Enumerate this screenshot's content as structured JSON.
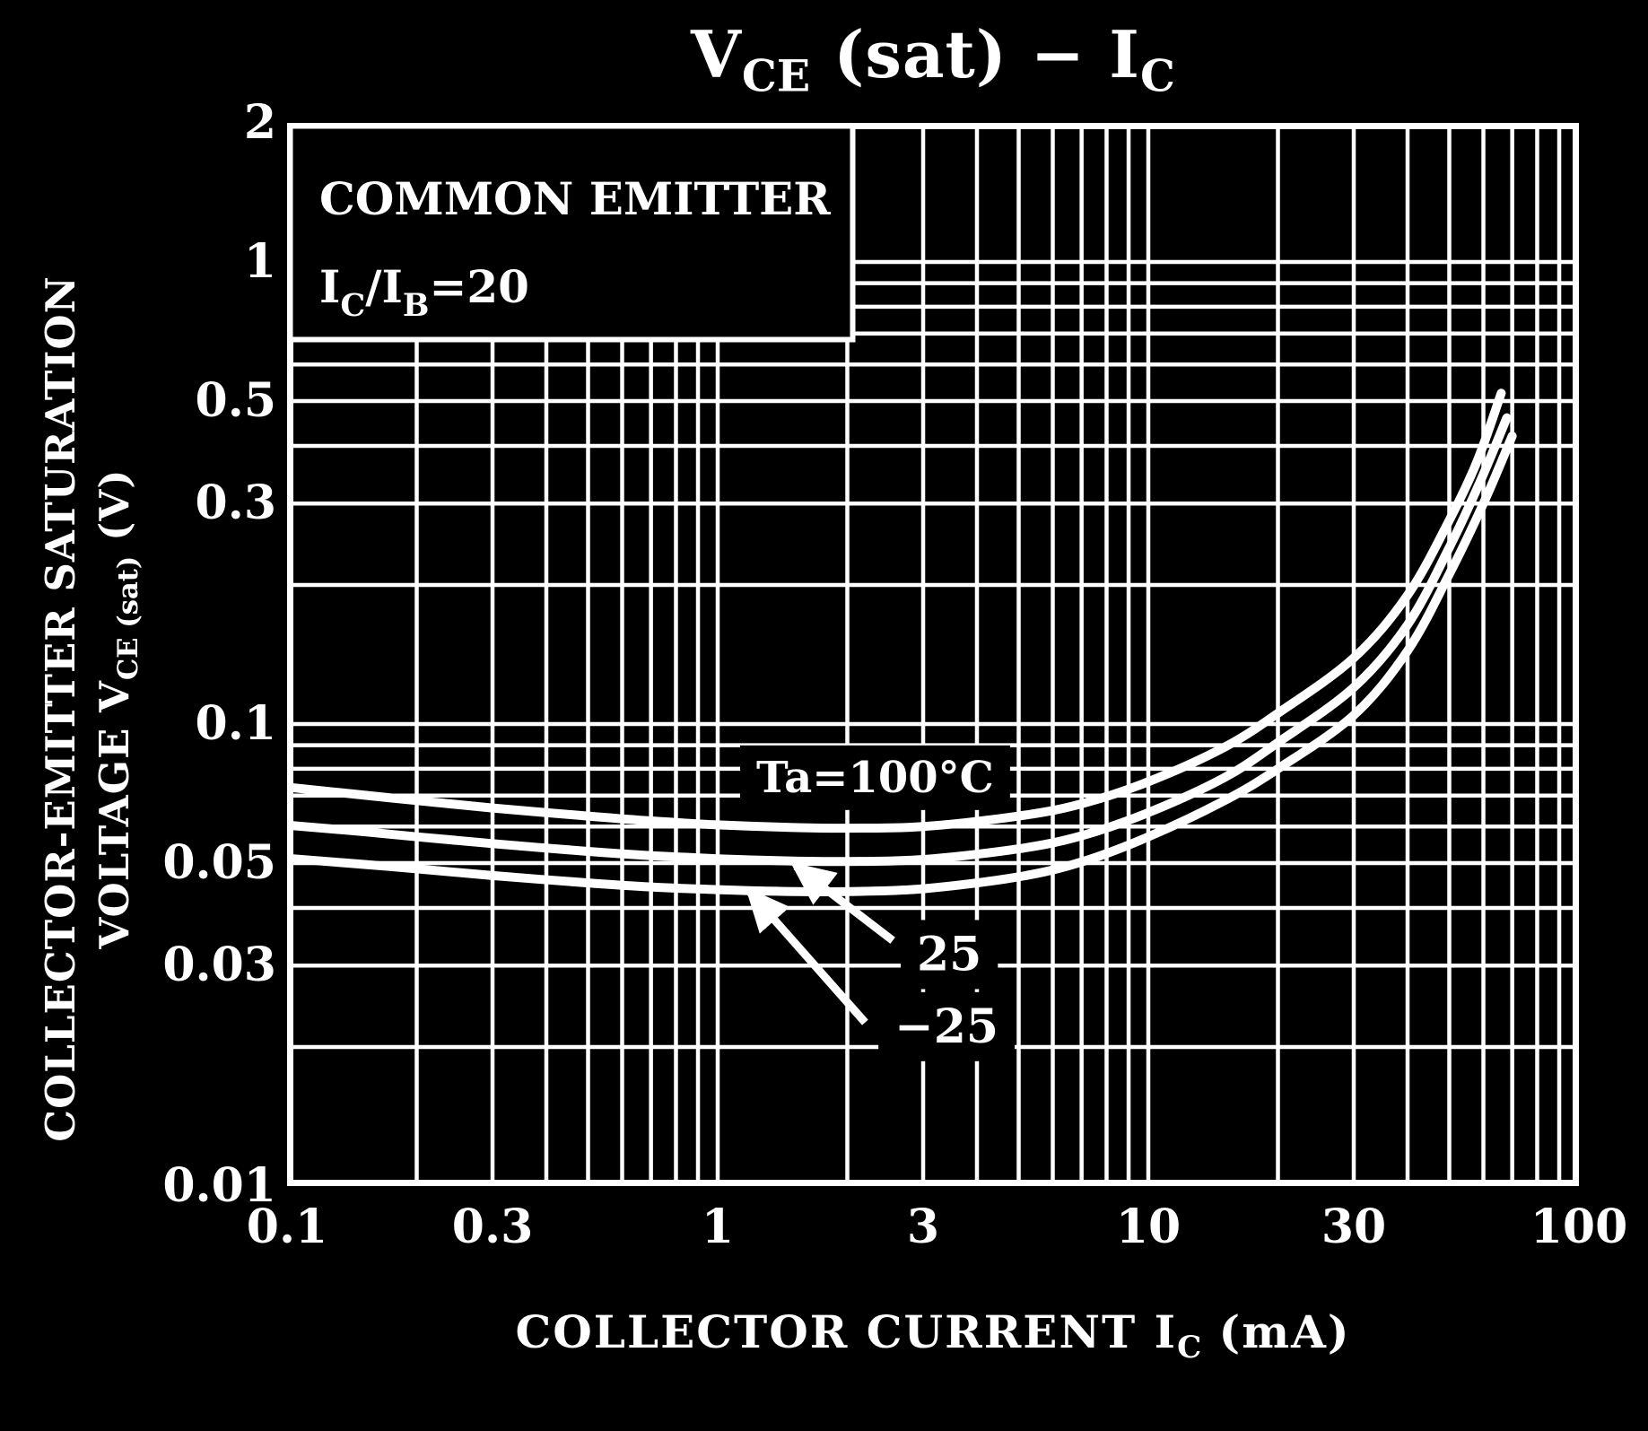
{
  "colors": {
    "background": "#000000",
    "foreground": "#ffffff"
  },
  "title": {
    "tokens": [
      {
        "t": "V"
      },
      {
        "t": "CE",
        "sub": true
      },
      {
        "t": " (sat)  −  I"
      },
      {
        "t": "C",
        "sub": true
      }
    ]
  },
  "legend_box": {
    "line1": "COMMON EMITTER",
    "line2_tokens": [
      {
        "t": "I"
      },
      {
        "t": "C",
        "sub": true
      },
      {
        "t": "/I"
      },
      {
        "t": "B",
        "sub": true
      },
      {
        "t": "=20"
      }
    ]
  },
  "x_axis": {
    "title_tokens": [
      {
        "t": "COLLECTOR CURRENT   I"
      },
      {
        "t": "C",
        "sub": true
      },
      {
        "t": "   (mA)"
      }
    ],
    "ticks": [
      {
        "v": 0.1,
        "label": "0.1"
      },
      {
        "v": 0.3,
        "label": "0.3"
      },
      {
        "v": 1,
        "label": "1"
      },
      {
        "v": 3,
        "label": "3"
      },
      {
        "v": 10,
        "label": "10"
      },
      {
        "v": 30,
        "label": "30"
      },
      {
        "v": 100,
        "label": "100"
      }
    ]
  },
  "y_axis": {
    "title_line1": "COLLECTOR-EMITTER SATURATION",
    "title_line2_tokens": [
      {
        "t": "VOLTAGE   V"
      },
      {
        "t": "CE (sat)",
        "sub": true
      },
      {
        "t": "   (V)"
      }
    ],
    "ticks": [
      {
        "v": 2,
        "label": "2"
      },
      {
        "v": 1,
        "label": "1"
      },
      {
        "v": 0.5,
        "label": "0.5"
      },
      {
        "v": 0.3,
        "label": "0.3"
      },
      {
        "v": 0.1,
        "label": "0.1"
      },
      {
        "v": 0.05,
        "label": "0.05"
      },
      {
        "v": 0.03,
        "label": "0.03"
      },
      {
        "v": 0.01,
        "label": "0.01"
      }
    ]
  },
  "chart_data": {
    "type": "line",
    "title": "VCE (sat) − IC",
    "xlabel": "COLLECTOR CURRENT IC (mA)",
    "ylabel": "COLLECTOR-EMITTER SATURATION VOLTAGE VCE (sat) (V)",
    "x_scale": "log",
    "y_scale": "log",
    "x_range": [
      0.1,
      100
    ],
    "y_range": [
      0.01,
      2
    ],
    "condition": "COMMON EMITTER, IC/IB=20",
    "grid": {
      "x_lines": [
        0.2,
        0.3,
        0.4,
        0.5,
        0.6,
        0.7,
        0.8,
        0.9,
        1,
        2,
        3,
        4,
        5,
        6,
        7,
        8,
        9,
        10,
        20,
        30,
        40,
        50,
        60,
        70,
        80,
        90
      ],
      "y_lines": [
        0.02,
        0.03,
        0.04,
        0.05,
        0.06,
        0.07,
        0.08,
        0.09,
        0.1,
        0.2,
        0.3,
        0.4,
        0.5,
        0.6,
        0.7,
        0.8,
        0.9,
        1
      ]
    },
    "series": [
      {
        "name": "ta-100c",
        "label": "Ta=100°C",
        "points": [
          [
            0.1,
            0.073
          ],
          [
            0.15,
            0.0702
          ],
          [
            0.2,
            0.0683
          ],
          [
            0.3,
            0.0658
          ],
          [
            0.5,
            0.0632
          ],
          [
            0.7,
            0.0617
          ],
          [
            1,
            0.0605
          ],
          [
            1.5,
            0.0597
          ],
          [
            2,
            0.0595
          ],
          [
            3,
            0.06
          ],
          [
            5,
            0.0632
          ],
          [
            7,
            0.0672
          ],
          [
            10,
            0.075
          ],
          [
            15,
            0.089
          ],
          [
            20,
            0.1055
          ],
          [
            30,
            0.139
          ],
          [
            40,
            0.19
          ],
          [
            50,
            0.276
          ],
          [
            58,
            0.37
          ],
          [
            66,
            0.52
          ]
        ]
      },
      {
        "name": "ta-25c",
        "label": "25",
        "points": [
          [
            0.1,
            0.0604
          ],
          [
            0.15,
            0.0585
          ],
          [
            0.2,
            0.057
          ],
          [
            0.3,
            0.0551
          ],
          [
            0.5,
            0.053
          ],
          [
            0.7,
            0.0519
          ],
          [
            1,
            0.0511
          ],
          [
            1.5,
            0.0505
          ],
          [
            2,
            0.0504
          ],
          [
            3,
            0.0509
          ],
          [
            5,
            0.0537
          ],
          [
            7,
            0.0573
          ],
          [
            10,
            0.0643
          ],
          [
            15,
            0.0765
          ],
          [
            20,
            0.0912
          ],
          [
            30,
            0.12
          ],
          [
            40,
            0.164
          ],
          [
            50,
            0.241
          ],
          [
            59,
            0.335
          ],
          [
            68,
            0.46
          ]
        ]
      },
      {
        "name": "ta-minus-25c",
        "label": "−25",
        "points": [
          [
            0.1,
            0.0512
          ],
          [
            0.15,
            0.0497
          ],
          [
            0.2,
            0.0486
          ],
          [
            0.3,
            0.047
          ],
          [
            0.5,
            0.0453
          ],
          [
            0.7,
            0.0444
          ],
          [
            1,
            0.0438
          ],
          [
            1.5,
            0.0434
          ],
          [
            2,
            0.0434
          ],
          [
            3,
            0.044
          ],
          [
            5,
            0.0467
          ],
          [
            7,
            0.0503
          ],
          [
            10,
            0.057
          ],
          [
            15,
            0.0682
          ],
          [
            20,
            0.08
          ],
          [
            30,
            0.1045
          ],
          [
            40,
            0.144
          ],
          [
            50,
            0.211
          ],
          [
            60,
            0.3
          ],
          [
            70,
            0.42
          ]
        ]
      }
    ],
    "annotations": [
      {
        "id": "label-ta-100c",
        "text": "Ta=100°C",
        "at": [
          2.32,
          0.0768
        ],
        "font": 48
      },
      {
        "id": "label-25",
        "text": "25",
        "at": [
          3.45,
          0.0318
        ],
        "font": 52,
        "arrow": {
          "from": [
            2.55,
            0.034
          ],
          "to": [
            1.52,
            0.0492
          ]
        }
      },
      {
        "id": "label-minus-25",
        "text": "−25",
        "at": [
          3.4,
          0.0222
        ],
        "font": 52,
        "arrow": {
          "from": [
            2.2,
            0.0226
          ],
          "to": [
            1.19,
            0.0432
          ]
        }
      }
    ]
  }
}
